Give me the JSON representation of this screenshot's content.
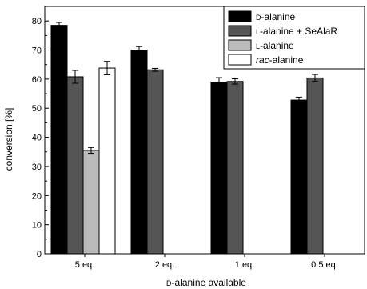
{
  "chart_data": {
    "type": "bar",
    "categories": [
      "5 eq.",
      "2 eq.",
      "1 eq.",
      "0.5 eq."
    ],
    "series": [
      {
        "name": "D-alanine",
        "prefix": "D",
        "suffix": "-alanine",
        "color": "#000000",
        "values": [
          78.5,
          70.0,
          59.0,
          52.8
        ],
        "errors": [
          1.0,
          1.2,
          1.5,
          1.0
        ]
      },
      {
        "name": "L-alanine + SeAlaR",
        "prefix": "L",
        "suffix": "-alanine + SeAlaR",
        "color": "#555555",
        "values": [
          60.8,
          63.2,
          59.2,
          60.4
        ],
        "errors": [
          2.2,
          0.5,
          0.9,
          1.2
        ]
      },
      {
        "name": "L-alanine",
        "prefix": "L",
        "suffix": "-alanine",
        "color": "#bbbbbb",
        "values": [
          35.5,
          null,
          null,
          null
        ],
        "errors": [
          1.0,
          null,
          null,
          null
        ]
      },
      {
        "name": "rac-alanine",
        "prefix": "rac",
        "suffix": "-alanine",
        "prefix_italic": true,
        "color": "#ffffff",
        "values": [
          63.8,
          null,
          null,
          null
        ],
        "errors": [
          2.3,
          null,
          null,
          null
        ]
      }
    ],
    "ylabel": "conversion [%]",
    "xlabel": {
      "prefix": "D",
      "suffix": "-alanine available"
    },
    "ylim": [
      0,
      85
    ],
    "yticks": [
      0,
      10,
      20,
      30,
      40,
      50,
      60,
      70,
      80
    ],
    "legend_position": "top-right",
    "grid": false
  }
}
